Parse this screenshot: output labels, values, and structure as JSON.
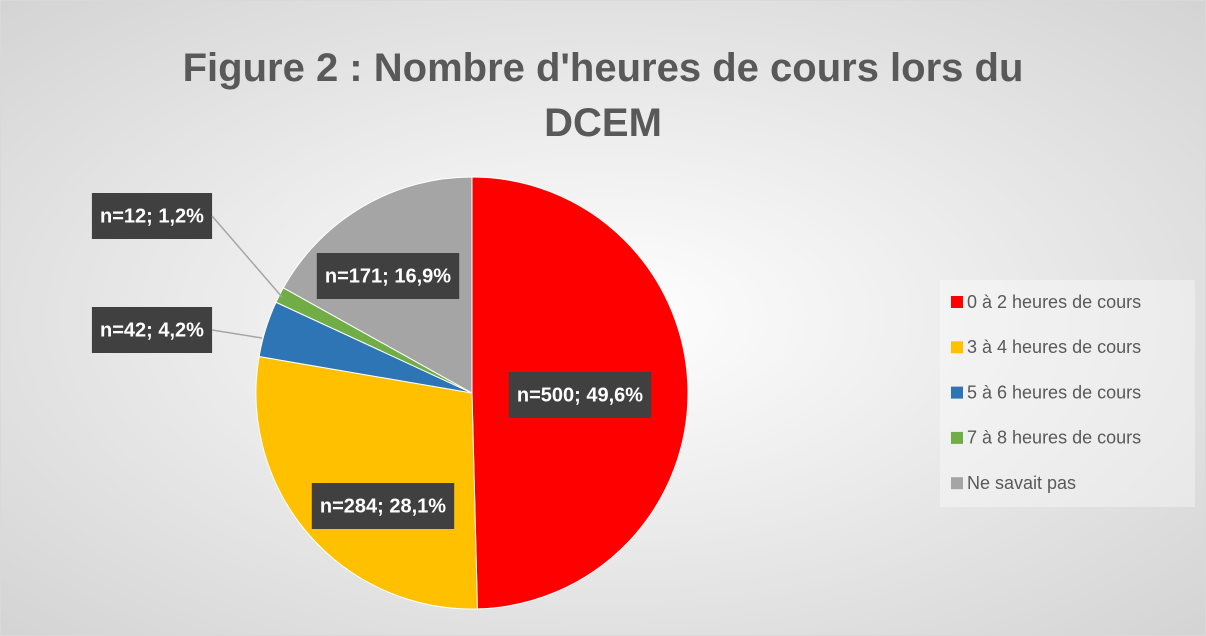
{
  "chart_data": {
    "type": "pie",
    "title": "Figure 2 : Nombre d'heures de cours lors du DCEM",
    "categories": [
      "0 à 2 heures de cours",
      "3 à 4 heures de cours",
      "5 à 6 heures de cours",
      "7 à 8 heures de cours",
      "Ne savait pas"
    ],
    "values": [
      49.6,
      28.1,
      4.2,
      1.2,
      16.9
    ],
    "value_labels": [
      "n=500; 49,6%",
      "n=284; 28,1%",
      "n=42; 4,2%",
      "n=12; 1,2%",
      "n=171; 16,9%"
    ],
    "colors": [
      "#ff0000",
      "#ffc000",
      "#2e75b6",
      "#70ad47",
      "#a5a5a5"
    ],
    "legend": "right"
  }
}
